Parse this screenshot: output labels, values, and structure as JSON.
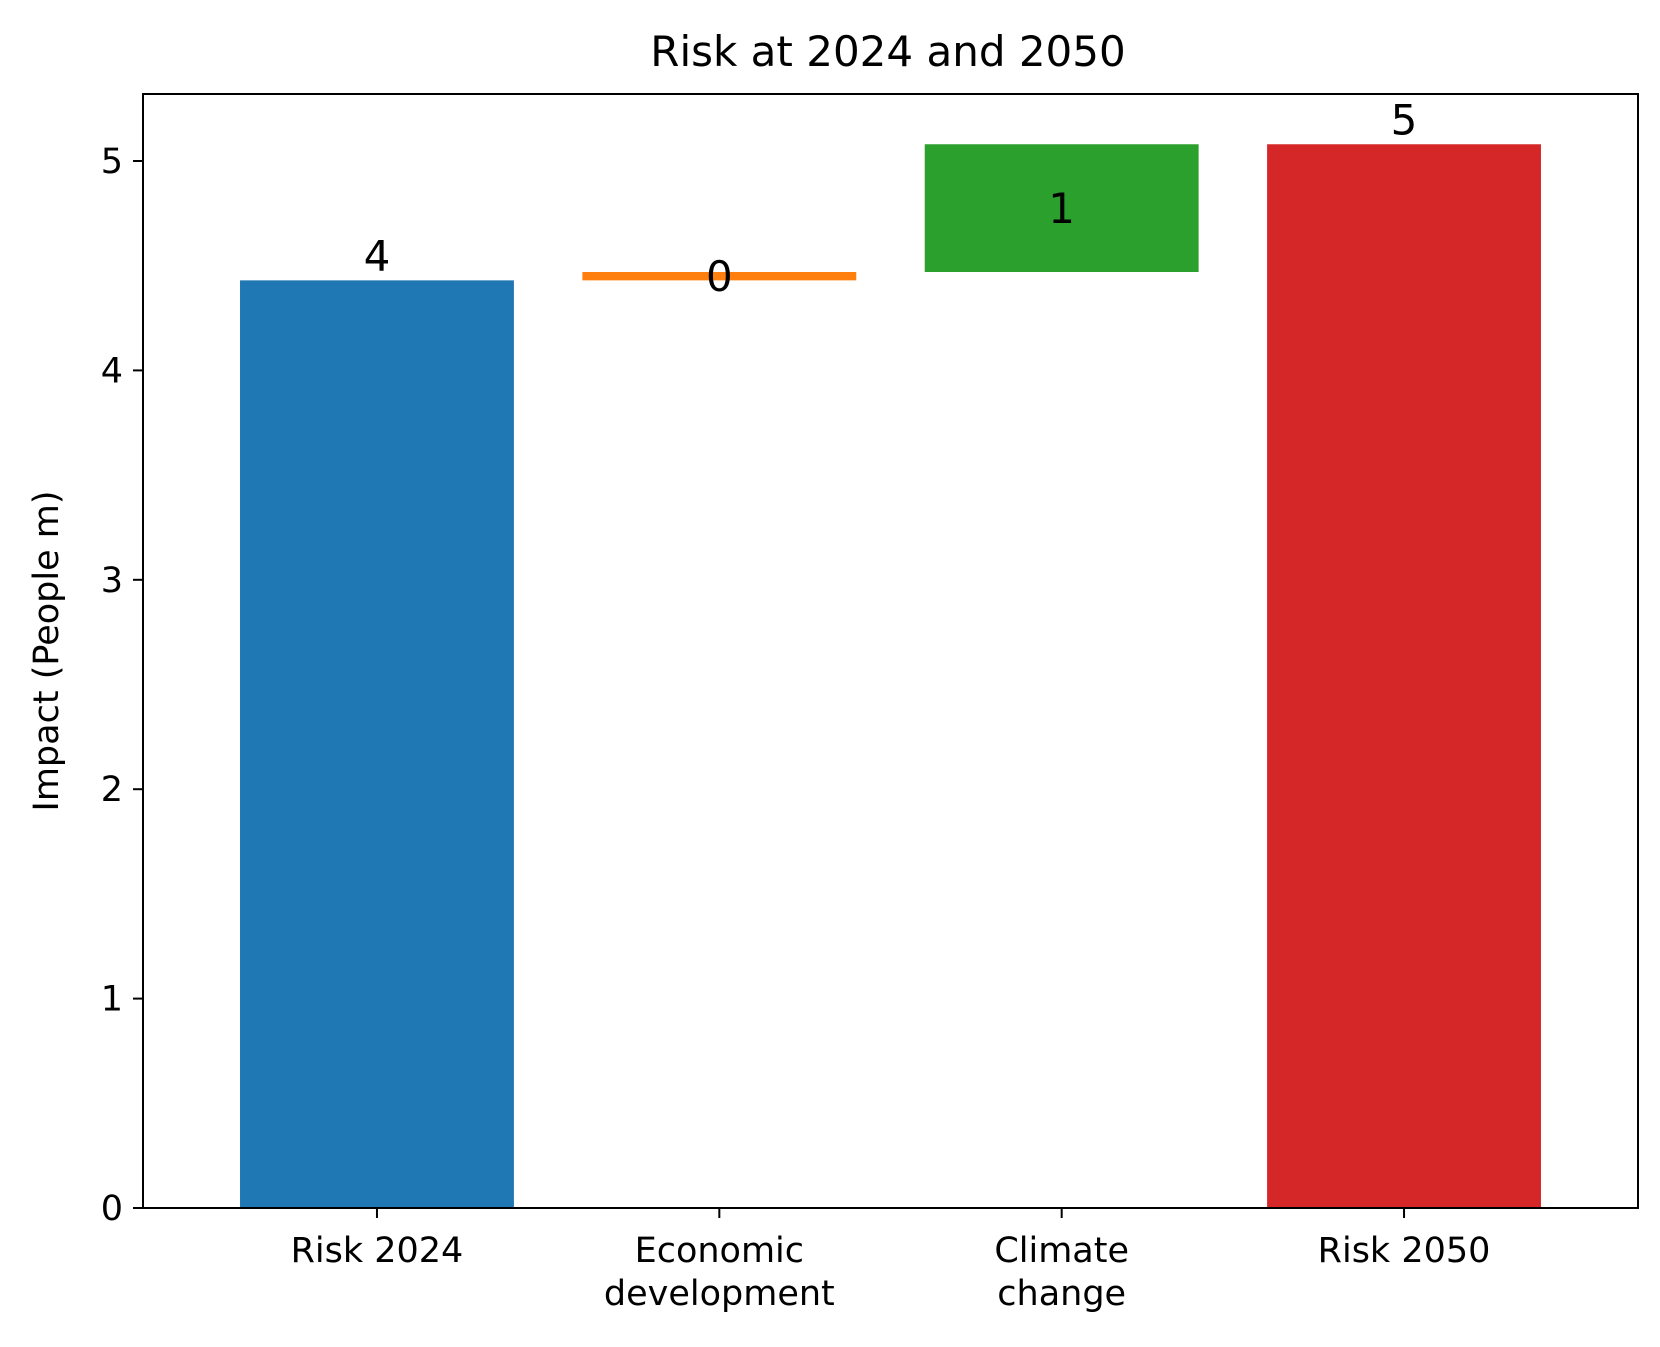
{
  "chart_data": {
    "type": "bar",
    "subtype": "waterfall",
    "title": "Risk at 2024 and 2050",
    "xlabel": "",
    "ylabel": "Impact (People m)",
    "ylim": [
      0,
      5.32
    ],
    "yticks": [
      "0",
      "1",
      "2",
      "3",
      "4",
      "5"
    ],
    "grid": false,
    "categories": [
      [
        "Risk 2024"
      ],
      [
        "Economic",
        "development"
      ],
      [
        "Climate",
        "change"
      ],
      [
        "Risk 2050"
      ]
    ],
    "bars": [
      {
        "category": "Risk 2024",
        "base": 0,
        "value": 4.43,
        "label": "4",
        "color": "#1f77b4"
      },
      {
        "category": "Economic development",
        "base": 4.43,
        "value": 0.04,
        "label": "0",
        "color": "#ff7f0e"
      },
      {
        "category": "Climate change",
        "base": 4.47,
        "value": 0.61,
        "label": "1",
        "color": "#2ca02c"
      },
      {
        "category": "Risk 2050",
        "base": 0,
        "value": 5.08,
        "label": "5",
        "color": "#d62728"
      }
    ]
  }
}
